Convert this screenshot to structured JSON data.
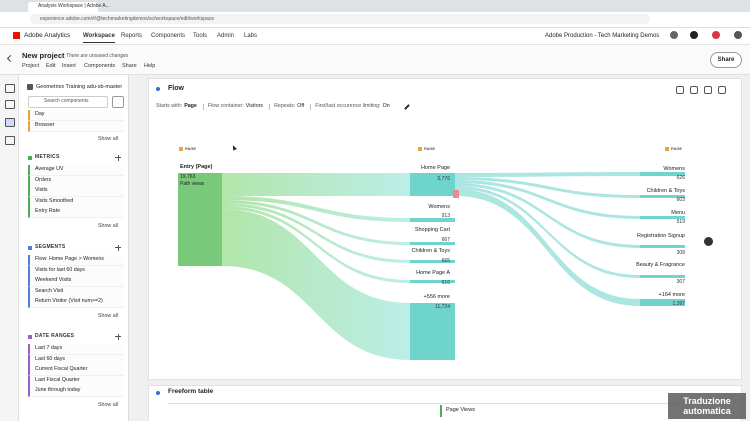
{
  "browser": {
    "tab": "Analysis Workspace | Adobe A...",
    "url": "experience.adobe.com/#/@techmarketingdemos/sc/workspace/edit/workspace"
  },
  "header": {
    "product": "Adobe Analytics",
    "nav": [
      "Workspace",
      "Reports",
      "Components",
      "Tools",
      "Admin",
      "Labs"
    ],
    "org": "Adobe Production - Tech Marketing Demos"
  },
  "project": {
    "title": "New project",
    "status": "There are unsaved changes",
    "menu": [
      "Project",
      "Edit",
      "Insert",
      "Components",
      "Share",
      "Help"
    ],
    "share": "Share"
  },
  "sidebar": {
    "report_suite": "Geometrixx Training adu-sb-master",
    "search": "Search components",
    "sections": [
      {
        "items": [
          "Day",
          "Browser"
        ],
        "show_all": "Show all"
      },
      {
        "title": "METRICS",
        "items": [
          "Average UV",
          "Orders",
          "Visits",
          "Visits Smoothed",
          "Entry Rate"
        ],
        "show_all": "Show all"
      },
      {
        "title": "SEGMENTS",
        "items": [
          "Flow: Home Page > Womens",
          "Visits for last 60 days",
          "Weekend Visits",
          "Search Visit",
          "Return Visitor (Visit num>=2)"
        ],
        "show_all": "Show all"
      },
      {
        "title": "DATE RANGES",
        "items": [
          "Last 7 days",
          "Last 60 days",
          "Current Fiscal Quarter",
          "Last Fiscal Quarter",
          "June through today"
        ],
        "show_all": "Show all"
      }
    ]
  },
  "flow": {
    "title": "Flow",
    "settings": [
      {
        "label": "Starts with:",
        "value": "Page"
      },
      {
        "label": "Flow container:",
        "value": "Visitors"
      },
      {
        "label": "Repeats:",
        "value": "Off"
      },
      {
        "label": "First/last occurence limiting:",
        "value": "On"
      }
    ],
    "column_labels": [
      "PAGE",
      "PAGE",
      "PAGE"
    ],
    "entry": {
      "label": "Entry (Page)",
      "value": "19,763",
      "unit": "Path views"
    },
    "step1": [
      {
        "label": "Home Page",
        "value": "5,776"
      },
      {
        "label": "Womens",
        "value": "913"
      },
      {
        "label": "Shopping Cart",
        "value": "667"
      },
      {
        "label": "Children & Toys",
        "value": "665"
      },
      {
        "label": "Home Page A",
        "value": "616"
      },
      {
        "label": "+556 more",
        "value": "11,724"
      }
    ],
    "step2": [
      {
        "label": "Womens",
        "value": "626"
      },
      {
        "label": "Children & Toys",
        "value": "603"
      },
      {
        "label": "Menu",
        "value": "519"
      },
      {
        "label": "Registration Signup",
        "value": "308"
      },
      {
        "label": "Beauty & Fragrance",
        "value": "307"
      },
      {
        "label": "+164 more",
        "value": "1,397"
      }
    ]
  },
  "freeform": {
    "title": "Freeform table",
    "column": "Page Views"
  },
  "watermark": "Traduzione automatica"
}
